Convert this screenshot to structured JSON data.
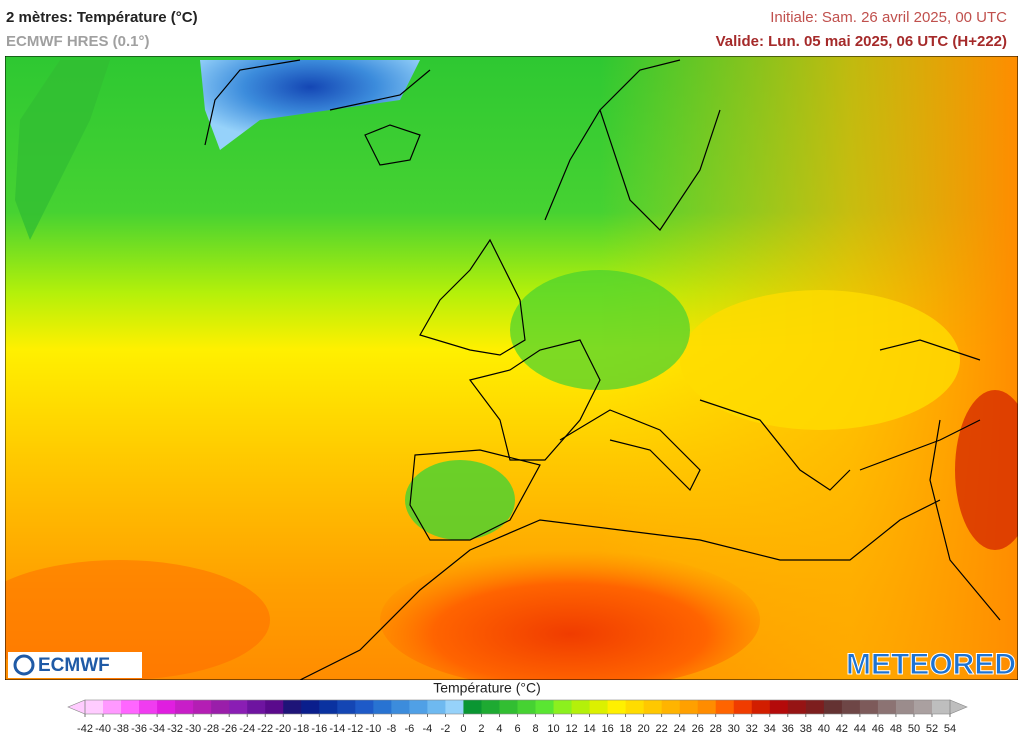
{
  "header": {
    "title": "2 mètres: Température (°C)",
    "model": "ECMWF HRES (0.1°)",
    "initial": "Initiale: Sam. 26 avril 2025, 00 UTC",
    "valid": "Valide: Lun. 05 mai 2025, 06 UTC (H+222)"
  },
  "logos": {
    "left": "ECMWF",
    "right": "METEORED"
  },
  "colorbar": {
    "title": "Température (°C)",
    "ticks": [
      -42,
      -40,
      -38,
      -36,
      -34,
      -32,
      -30,
      -28,
      -26,
      -24,
      -22,
      -20,
      -18,
      -16,
      -14,
      -12,
      -10,
      -8,
      -6,
      -4,
      -2,
      0,
      2,
      4,
      6,
      8,
      10,
      12,
      14,
      16,
      18,
      20,
      22,
      24,
      26,
      28,
      30,
      32,
      34,
      36,
      38,
      40,
      42,
      44,
      46,
      48,
      50,
      52,
      54
    ],
    "colors": [
      "#ffccff",
      "#ff99ff",
      "#ff66ff",
      "#f03cf0",
      "#e01ee0",
      "#c81ec8",
      "#b41eb4",
      "#9a1eaa",
      "#8a1eb4",
      "#6e14a0",
      "#5a0a8c",
      "#1e1478",
      "#0a1e8c",
      "#0a32a0",
      "#1446b4",
      "#1e5ac8",
      "#2873d2",
      "#3c8cdc",
      "#50a0e6",
      "#6eb9f0",
      "#96d2fa",
      "#0a9632",
      "#1eaa32",
      "#32be32",
      "#46d232",
      "#5ae632",
      "#8cf01e",
      "#b4f00a",
      "#dcf000",
      "#fff000",
      "#ffdc00",
      "#ffc800",
      "#ffb400",
      "#ffa000",
      "#ff8c00",
      "#ff6400",
      "#f03c00",
      "#d21e00",
      "#b40a0a",
      "#961414",
      "#7d1e1e",
      "#643232",
      "#6e4646",
      "#7d5a5a",
      "#8c7373",
      "#9b8c8c",
      "#aaa0a0",
      "#bebebe"
    ]
  }
}
